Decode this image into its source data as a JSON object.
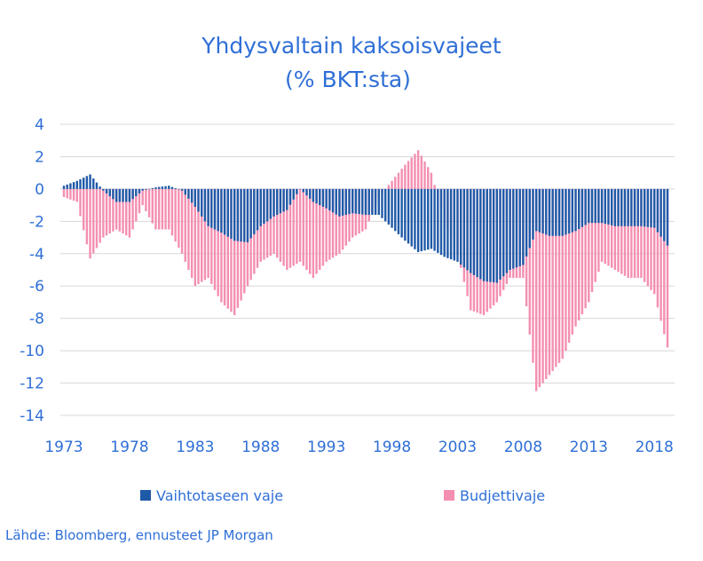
{
  "chart_data": {
    "type": "bar",
    "title": "Yhdysvaltain kaksoisvajeet",
    "subtitle": "(% BKT:sta)",
    "ylim": [
      -14,
      4
    ],
    "yticks": [
      4,
      2,
      0,
      -2,
      -4,
      -6,
      -8,
      -10,
      -12,
      -14
    ],
    "xlim": [
      1973,
      2019
    ],
    "xtick_labels": [
      "1973",
      "1978",
      "1983",
      "1988",
      "1993",
      "1998",
      "2003",
      "2008",
      "2013",
      "2018"
    ],
    "grid": true,
    "legend_position": "bottom",
    "series": [
      {
        "name": "Vaihtotaseen vaje",
        "color": "#1f5aa8",
        "points": [
          [
            1973,
            0.2
          ],
          [
            1974,
            0.5
          ],
          [
            1975,
            0.9
          ],
          [
            1976,
            -0.1
          ],
          [
            1977,
            -0.8
          ],
          [
            1978,
            -0.8
          ],
          [
            1979,
            -0.1
          ],
          [
            1980,
            0.1
          ],
          [
            1981,
            0.2
          ],
          [
            1982,
            -0.1
          ],
          [
            1983,
            -1.1
          ],
          [
            1984,
            -2.3
          ],
          [
            1985,
            -2.7
          ],
          [
            1986,
            -3.2
          ],
          [
            1987,
            -3.3
          ],
          [
            1988,
            -2.3
          ],
          [
            1989,
            -1.7
          ],
          [
            1990,
            -1.3
          ],
          [
            1991,
            0.0
          ],
          [
            1992,
            -0.8
          ],
          [
            1993,
            -1.2
          ],
          [
            1994,
            -1.7
          ],
          [
            1995,
            -1.5
          ],
          [
            1996,
            -1.6
          ],
          [
            1997,
            -1.6
          ],
          [
            1998,
            -2.4
          ],
          [
            1999,
            -3.2
          ],
          [
            2000,
            -3.9
          ],
          [
            2001,
            -3.7
          ],
          [
            2002,
            -4.2
          ],
          [
            2003,
            -4.5
          ],
          [
            2004,
            -5.2
          ],
          [
            2005,
            -5.7
          ],
          [
            2006,
            -5.8
          ],
          [
            2007,
            -5.0
          ],
          [
            2008,
            -4.7
          ],
          [
            2009,
            -2.6
          ],
          [
            2010,
            -2.9
          ],
          [
            2011,
            -2.9
          ],
          [
            2012,
            -2.6
          ],
          [
            2013,
            -2.1
          ],
          [
            2014,
            -2.1
          ],
          [
            2015,
            -2.3
          ],
          [
            2016,
            -2.3
          ],
          [
            2017,
            -2.3
          ],
          [
            2018,
            -2.4
          ],
          [
            2019,
            -3.5
          ]
        ]
      },
      {
        "name": "Budjettivaje",
        "color": "#f48fb1",
        "points": [
          [
            1973,
            -0.5
          ],
          [
            1974,
            -0.8
          ],
          [
            1975,
            -4.3
          ],
          [
            1976,
            -3.0
          ],
          [
            1977,
            -2.5
          ],
          [
            1978,
            -3.0
          ],
          [
            1979,
            -1.0
          ],
          [
            1980,
            -2.5
          ],
          [
            1981,
            -2.5
          ],
          [
            1982,
            -4.0
          ],
          [
            1983,
            -6.0
          ],
          [
            1984,
            -5.5
          ],
          [
            1985,
            -7.0
          ],
          [
            1986,
            -7.8
          ],
          [
            1987,
            -6.0
          ],
          [
            1988,
            -4.5
          ],
          [
            1989,
            -4.0
          ],
          [
            1990,
            -5.0
          ],
          [
            1991,
            -4.5
          ],
          [
            1992,
            -5.5
          ],
          [
            1993,
            -4.5
          ],
          [
            1994,
            -4.0
          ],
          [
            1995,
            -3.0
          ],
          [
            1996,
            -2.5
          ],
          [
            1997,
            -0.5
          ],
          [
            1998,
            0.5
          ],
          [
            1999,
            1.5
          ],
          [
            2000,
            2.4
          ],
          [
            2001,
            1.0
          ],
          [
            2002,
            -2.0
          ],
          [
            2003,
            -4.0
          ],
          [
            2004,
            -7.5
          ],
          [
            2005,
            -7.8
          ],
          [
            2006,
            -7.0
          ],
          [
            2007,
            -5.5
          ],
          [
            2008,
            -5.5
          ],
          [
            2009,
            -12.5
          ],
          [
            2010,
            -11.5
          ],
          [
            2011,
            -10.5
          ],
          [
            2012,
            -8.5
          ],
          [
            2013,
            -7.0
          ],
          [
            2014,
            -4.5
          ],
          [
            2015,
            -5.0
          ],
          [
            2016,
            -5.5
          ],
          [
            2017,
            -5.5
          ],
          [
            2018,
            -6.5
          ],
          [
            2019,
            -9.8
          ]
        ]
      }
    ]
  },
  "source": "Lähde: Bloomberg, ennusteet JP Morgan"
}
